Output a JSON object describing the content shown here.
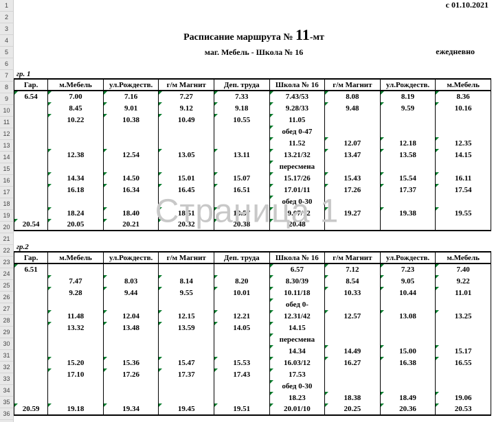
{
  "date_label": "с 01.10.2021",
  "title_pre": "Расписание  маршрута  № ",
  "title_num": "11",
  "title_suf": "-мт",
  "subtitle": "маг. Мебель - Школа № 16",
  "daily": "ежедневно",
  "watermark": "Страница 1",
  "row_nums": [
    "1",
    "2",
    "3",
    "4",
    "5",
    "6",
    "7",
    "8",
    "9",
    "10",
    "11",
    "12",
    "13",
    "14",
    "15",
    "16",
    "17",
    "18",
    "19",
    "20",
    "21",
    "22",
    "23",
    "24",
    "25",
    "26",
    "27",
    "28",
    "29",
    "30",
    "31",
    "32",
    "33",
    "34",
    "35",
    "36"
  ],
  "group1": {
    "label": "гр. 1",
    "headers": [
      "Гар.",
      "м.Мебель",
      "ул.Рождеств.",
      "г/м Магнит",
      "Деп. труда",
      "Школа № 16",
      "г/м Магнит",
      "ул.Рождеств.",
      "м.Мебель"
    ],
    "rows": [
      [
        "6.54",
        "7.00",
        "7.16",
        "7.27",
        "7.33",
        "7.43/53",
        "8.08",
        "8.19",
        "8.36"
      ],
      [
        "",
        "8.45",
        "9.01",
        "9.12",
        "9.18",
        "9.28/33",
        "9.48",
        "9.59",
        "10.16"
      ],
      [
        "",
        "10.22",
        "10.38",
        "10.49",
        "10.55",
        "11.05",
        "",
        "",
        ""
      ],
      [
        "",
        "",
        "",
        "",
        "",
        "обед 0-47",
        "",
        "",
        ""
      ],
      [
        "",
        "",
        "",
        "",
        "",
        "11.52",
        "12.07",
        "12.18",
        "12.35"
      ],
      [
        "",
        "12.38",
        "12.54",
        "13.05",
        "13.11",
        "13.21/32",
        "13.47",
        "13.58",
        "14.15"
      ],
      [
        "",
        "",
        "",
        "",
        "",
        "пересмена",
        "",
        "",
        ""
      ],
      [
        "",
        "14.34",
        "14.50",
        "15.01",
        "15.07",
        "15.17/26",
        "15.43",
        "15.54",
        "16.11"
      ],
      [
        "",
        "16.18",
        "16.34",
        "16.45",
        "16.51",
        "17.01/11",
        "17.26",
        "17.37",
        "17.54"
      ],
      [
        "",
        "",
        "",
        "",
        "",
        "обед 0-30",
        "",
        "",
        ""
      ],
      [
        "",
        "18.24",
        "18.40",
        "18.51",
        "18.57",
        "19.07/12",
        "19.27",
        "19.38",
        "19.55"
      ],
      [
        "20.54",
        "20.05",
        "20.21",
        "20.32",
        "20.38",
        "20.48",
        "",
        "",
        ""
      ]
    ]
  },
  "group2": {
    "label": "гр.2",
    "headers": [
      "Гар.",
      "м.Мебель",
      "ул.Рождеств.",
      "г/м Магнит",
      "Деп. труда",
      "Школа № 16",
      "г/м Магнит",
      "ул.Рождеств.",
      "м.Мебель"
    ],
    "rows": [
      [
        "6.51",
        "",
        "",
        "",
        "",
        "6.57",
        "7.12",
        "7.23",
        "7.40"
      ],
      [
        "",
        "7.47",
        "8.03",
        "8.14",
        "8.20",
        "8.30/39",
        "8.54",
        "9.05",
        "9.22"
      ],
      [
        "",
        "9.28",
        "9.44",
        "9.55",
        "10.01",
        "10.11/18",
        "10.33",
        "10.44",
        "11.01"
      ],
      [
        "",
        "",
        "",
        "",
        "",
        "обед 0-",
        "",
        "",
        ""
      ],
      [
        "",
        "11.48",
        "12.04",
        "12.15",
        "12.21",
        "12.31/42",
        "12.57",
        "13.08",
        "13.25"
      ],
      [
        "",
        "13.32",
        "13.48",
        "13.59",
        "14.05",
        "14.15",
        "",
        "",
        ""
      ],
      [
        "",
        "",
        "",
        "",
        "",
        "пересмена",
        "",
        "",
        ""
      ],
      [
        "",
        "",
        "",
        "",
        "",
        "14.34",
        "14.49",
        "15.00",
        "15.17"
      ],
      [
        "",
        "15.20",
        "15.36",
        "15.47",
        "15.53",
        "16.03/12",
        "16.27",
        "16.38",
        "16.55"
      ],
      [
        "",
        "17.10",
        "17.26",
        "17.37",
        "17.43",
        "17.53",
        "",
        "",
        ""
      ],
      [
        "",
        "",
        "",
        "",
        "",
        "обед 0-30",
        "",
        "",
        ""
      ],
      [
        "",
        "",
        "",
        "",
        "",
        "18.23",
        "18.38",
        "18.49",
        "19.06"
      ],
      [
        "20.59",
        "19.18",
        "19.34",
        "19.45",
        "19.51",
        "20.01/10",
        "20.25",
        "20.36",
        "20.53"
      ]
    ]
  }
}
